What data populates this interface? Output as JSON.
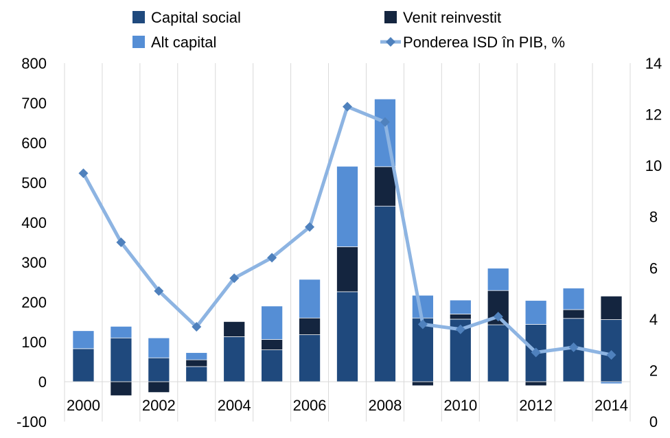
{
  "chart_data": {
    "type": "bar",
    "stacked": true,
    "categories": [
      "2000",
      "2001",
      "2002",
      "2003",
      "2004",
      "2005",
      "2006",
      "2007",
      "2008",
      "2009",
      "2010",
      "2011",
      "2012",
      "2013",
      "2014"
    ],
    "x_tick_labels": [
      "2000",
      "2002",
      "2004",
      "2006",
      "2008",
      "2010",
      "2012",
      "2014"
    ],
    "series": [
      {
        "name": "Capital social",
        "kind": "bar",
        "color": "#1f497d",
        "values": [
          83,
          110,
          60,
          38,
          113,
          80,
          118,
          226,
          441,
          160,
          157,
          143,
          144,
          159,
          156
        ]
      },
      {
        "name": "Venit reinvestit",
        "kind": "bar",
        "color": "#14253f",
        "values": [
          0,
          -35,
          -27,
          17,
          38,
          26,
          42,
          113,
          99,
          -10,
          13,
          86,
          -10,
          22,
          59
        ]
      },
      {
        "name": "Alt capital",
        "kind": "bar",
        "color": "#558ed5",
        "values": [
          45,
          29,
          50,
          18,
          0,
          84,
          97,
          202,
          170,
          57,
          35,
          56,
          60,
          54,
          -5
        ]
      },
      {
        "name": "Ponderea ISD în PIB, %",
        "kind": "line",
        "axis": "right",
        "color": "#8db4e2",
        "marker_color": "#4f81bd",
        "values": [
          9.7,
          7.0,
          5.1,
          3.7,
          5.6,
          6.4,
          7.6,
          12.3,
          11.7,
          3.8,
          3.6,
          4.1,
          2.7,
          2.9,
          2.6
        ]
      }
    ],
    "y_left": {
      "min": -100,
      "max": 800,
      "ticks": [
        -100,
        0,
        100,
        200,
        300,
        400,
        500,
        600,
        700,
        800
      ]
    },
    "y_right": {
      "min": 0,
      "max": 14,
      "ticks": [
        0,
        2,
        4,
        6,
        8,
        10,
        12,
        14
      ]
    },
    "grid": "vertical",
    "legend_position": "top"
  }
}
